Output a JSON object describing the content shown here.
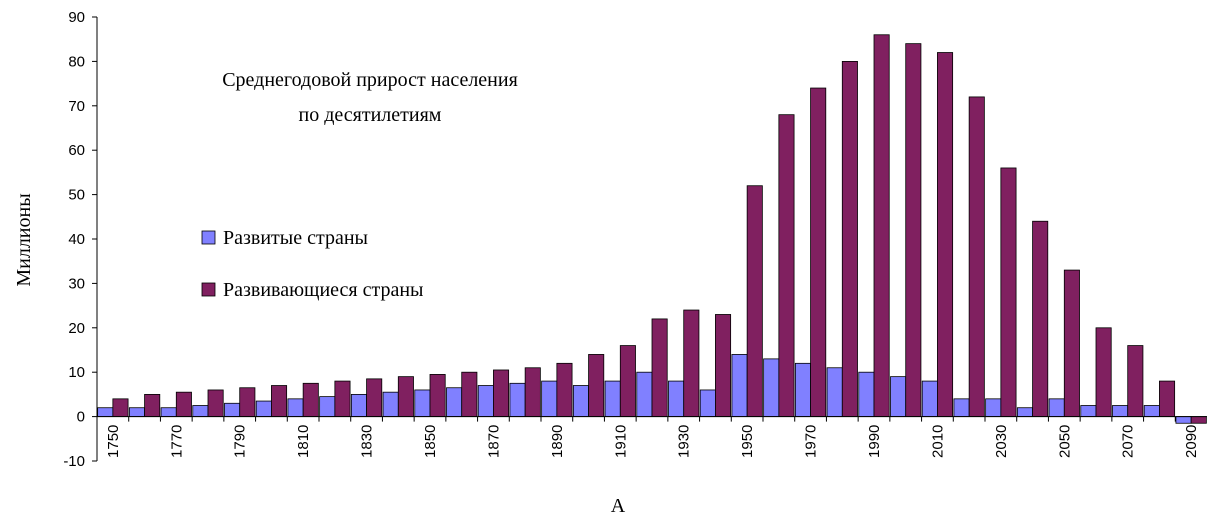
{
  "chart_data": {
    "type": "bar",
    "title": "Среднегодовой прирост населения",
    "subtitle": "по десятилетиям",
    "ylabel": "Миллионы",
    "xlabel": "A",
    "categories": [
      "1750",
      null,
      "1770",
      null,
      "1790",
      null,
      "1810",
      null,
      "1830",
      null,
      "1850",
      null,
      "1870",
      null,
      "1890",
      null,
      "1910",
      null,
      "1930",
      null,
      "1950",
      null,
      "1970",
      null,
      "1990",
      null,
      "2010",
      null,
      "2030",
      null,
      "2050",
      null,
      "2070",
      null,
      "2090"
    ],
    "series": [
      {
        "name": "Развитые страны",
        "color": "#8080ff",
        "values": [
          2,
          2,
          2,
          2.5,
          3,
          3.5,
          4,
          4.5,
          5,
          5.5,
          6,
          6.5,
          7,
          7.5,
          8,
          7,
          8,
          10,
          8,
          6,
          14,
          13,
          12,
          11,
          10,
          9,
          8,
          4,
          4,
          2,
          4,
          2.5,
          2.5,
          2.5,
          -1.5
        ]
      },
      {
        "name": "Развивающиеся страны",
        "color": "#802060",
        "values": [
          4,
          5,
          5.5,
          6,
          6.5,
          7,
          7.5,
          8,
          8.5,
          9,
          9.5,
          10,
          10.5,
          11,
          12,
          14,
          16,
          22,
          24,
          23,
          52,
          68,
          74,
          80,
          86,
          84,
          82,
          72,
          56,
          44,
          33,
          20,
          16,
          8,
          -1.5
        ]
      }
    ],
    "ylim": [
      -10,
      90
    ],
    "yticks": [
      -10,
      0,
      10,
      20,
      30,
      40,
      50,
      60,
      70,
      80,
      90
    ],
    "grid": false
  }
}
